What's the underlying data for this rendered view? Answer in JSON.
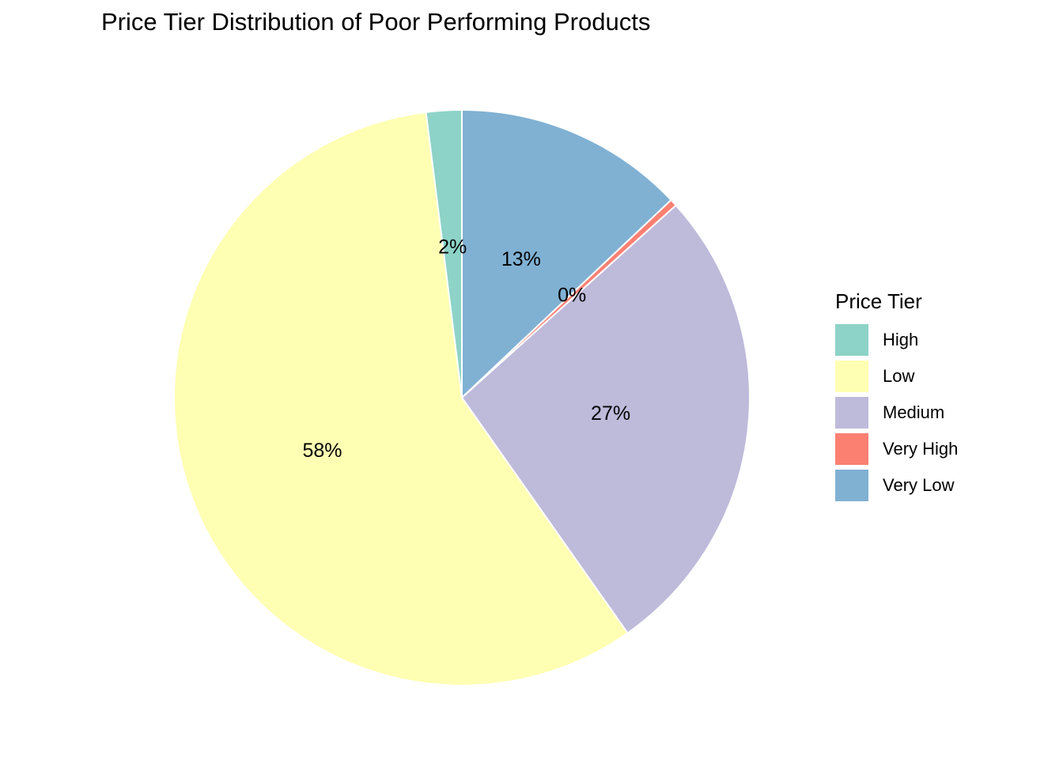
{
  "chart_data": {
    "type": "pie",
    "title": "Price Tier Distribution of Poor Performing Products",
    "legend_title": "Price Tier",
    "legend_position": "right",
    "categories": [
      "High",
      "Low",
      "Medium",
      "Very High",
      "Very Low"
    ],
    "values": [
      2,
      58,
      27,
      0.4,
      13
    ],
    "labels": [
      "2%",
      "58%",
      "27%",
      "0%",
      "13%"
    ],
    "colors": [
      "#8DD3C7",
      "#FFFFB3",
      "#BEBADA",
      "#FB8072",
      "#80B1D3"
    ],
    "slice_order_clockwise_from_top": [
      "Very Low",
      "Very High",
      "Medium",
      "Low",
      "High"
    ]
  }
}
